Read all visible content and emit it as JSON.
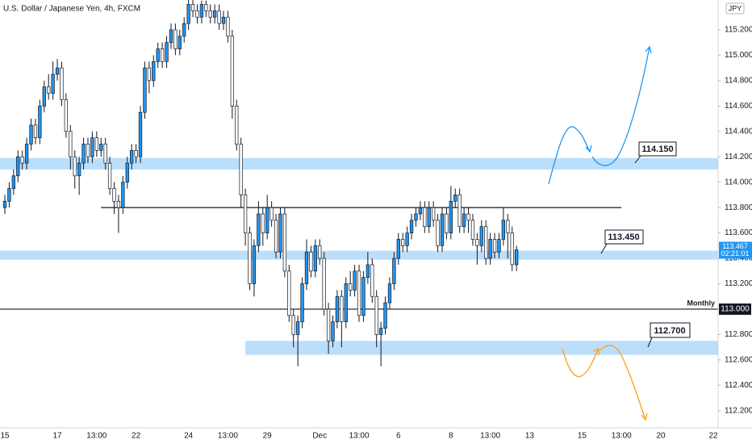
{
  "chart_data": {
    "type": "candlestick",
    "title": "U.S. Dollar / Japanese Yen, 4h, FXCM",
    "currency": "JPY",
    "up_color": "#2196f3",
    "down_color": "#ffffff",
    "border_color": "#131722",
    "grid": false,
    "ylim": [
      112.065,
      115.435
    ],
    "yticks": [
      {
        "value": 112.2,
        "label": "112.200"
      },
      {
        "value": 112.4,
        "label": "112.400"
      },
      {
        "value": 112.6,
        "label": "112.600"
      },
      {
        "value": 112.8,
        "label": "112.800"
      },
      {
        "value": 113.2,
        "label": "113.200"
      },
      {
        "value": 113.4,
        "label": "113.400"
      },
      {
        "value": 113.6,
        "label": "113.600"
      },
      {
        "value": 113.8,
        "label": "113.800"
      },
      {
        "value": 114,
        "label": "114.000"
      },
      {
        "value": 114.2,
        "label": "114.200"
      },
      {
        "value": 114.4,
        "label": "114.400"
      },
      {
        "value": 114.6,
        "label": "114.600"
      },
      {
        "value": 114.8,
        "label": "114.800"
      },
      {
        "value": 115,
        "label": "115.000"
      },
      {
        "value": 115.2,
        "label": "115.200"
      }
    ],
    "categories": [
      "15",
      null,
      null,
      null,
      null,
      null,
      null,
      null,
      null,
      null,
      null,
      null,
      "17",
      null,
      null,
      null,
      null,
      null,
      null,
      null,
      null,
      "13:00",
      null,
      null,
      null,
      null,
      null,
      null,
      null,
      null,
      "22",
      null,
      null,
      null,
      null,
      null,
      null,
      null,
      null,
      null,
      null,
      null,
      "24",
      null,
      null,
      null,
      null,
      null,
      null,
      null,
      null,
      "13:00",
      null,
      null,
      null,
      null,
      null,
      null,
      null,
      null,
      "29",
      null,
      null,
      null,
      null,
      null,
      null,
      null,
      null,
      null,
      null,
      null,
      "Dec",
      null,
      null,
      null,
      null,
      null,
      null,
      null,
      null,
      "13:00",
      null,
      null,
      null,
      null,
      null,
      null,
      null,
      null,
      "6",
      null,
      null,
      null,
      null,
      null,
      null,
      null,
      null,
      null,
      null,
      null,
      "8",
      null,
      null,
      null,
      null,
      null,
      null,
      null,
      null,
      "13:00",
      null,
      null,
      null,
      null,
      null,
      null,
      null,
      null,
      "13",
      null,
      null,
      null,
      null,
      null,
      null,
      null,
      null,
      null,
      null,
      null,
      "15",
      null,
      null,
      null,
      null,
      null,
      null,
      null,
      null,
      "13:00",
      null,
      null,
      null,
      null,
      null,
      null,
      null,
      null,
      "20",
      null,
      null,
      null,
      null,
      null,
      null,
      null,
      null,
      null,
      null,
      null,
      "22",
      null
    ],
    "open": [
      113.8,
      113.85,
      113.95,
      114.05,
      114.2,
      114.15,
      114.3,
      114.45,
      114.35,
      114.6,
      114.75,
      114.7,
      114.85,
      114.9,
      114.65,
      114.4,
      114.2,
      114.05,
      114.15,
      114.3,
      114.2,
      114.35,
      114.25,
      114.3,
      114.15,
      113.95,
      113.85,
      113.8,
      114.0,
      114.15,
      114.25,
      114.2,
      114.55,
      114.9,
      114.8,
      114.95,
      115.05,
      114.95,
      115.1,
      115.2,
      115.05,
      115.15,
      115.25,
      115.4,
      115.35,
      115.3,
      115.4,
      115.35,
      115.3,
      115.35,
      115.25,
      115.3,
      115.15,
      114.6,
      114.3,
      113.9,
      113.6,
      113.2,
      113.5,
      113.75,
      113.6,
      113.8,
      113.7,
      113.45,
      113.75,
      113.3,
      112.95,
      112.8,
      112.9,
      113.2,
      113.45,
      113.3,
      113.5,
      113.4,
      113.0,
      112.75,
      112.9,
      113.1,
      112.9,
      113.2,
      113.15,
      113.3,
      112.95,
      113.25,
      113.35,
      113.1,
      112.8,
      112.85,
      113.05,
      113.2,
      113.4,
      113.55,
      113.5,
      113.6,
      113.7,
      113.75,
      113.8,
      113.65,
      113.8,
      113.7,
      113.5,
      113.75,
      113.6,
      113.85,
      113.9,
      113.65,
      113.75,
      113.7,
      113.55,
      113.5,
      113.65,
      113.4,
      113.55,
      113.45,
      113.55,
      113.7,
      113.6,
      113.35,
      null,
      null,
      null,
      null,
      null,
      null,
      null,
      null,
      null,
      null,
      null,
      null,
      null,
      null,
      null,
      null,
      null,
      null,
      null,
      null,
      null,
      null,
      null,
      null,
      null,
      null,
      null,
      null,
      null,
      null,
      null,
      null,
      null,
      null,
      null,
      null,
      null,
      null,
      null,
      null,
      null,
      null,
      null,
      null,
      null,
      null
    ],
    "high": [
      113.9,
      114.0,
      114.1,
      114.25,
      114.25,
      114.35,
      114.5,
      114.5,
      114.65,
      114.8,
      114.85,
      114.95,
      114.97,
      114.95,
      114.7,
      114.45,
      114.25,
      114.2,
      114.35,
      114.35,
      114.4,
      114.4,
      114.35,
      114.35,
      114.2,
      114.0,
      113.9,
      114.05,
      114.2,
      114.3,
      114.3,
      114.6,
      114.95,
      114.95,
      115.0,
      115.1,
      115.1,
      115.15,
      115.25,
      115.25,
      115.2,
      115.3,
      115.45,
      115.45,
      115.4,
      115.43,
      115.43,
      115.4,
      115.4,
      115.4,
      115.35,
      115.35,
      115.2,
      114.65,
      114.35,
      113.95,
      113.65,
      113.55,
      113.85,
      113.8,
      113.9,
      113.85,
      113.75,
      113.8,
      113.8,
      113.35,
      113.0,
      112.95,
      113.25,
      113.55,
      113.5,
      113.55,
      113.55,
      113.45,
      113.05,
      112.95,
      113.15,
      113.15,
      113.25,
      113.3,
      113.35,
      113.35,
      113.3,
      113.45,
      113.4,
      113.15,
      112.9,
      113.1,
      113.25,
      113.45,
      113.6,
      113.6,
      113.65,
      113.75,
      113.8,
      113.85,
      113.85,
      113.85,
      113.85,
      113.75,
      113.8,
      113.8,
      113.97,
      113.95,
      113.95,
      113.8,
      113.8,
      113.75,
      113.6,
      113.7,
      113.7,
      113.6,
      113.6,
      113.6,
      113.8,
      113.75,
      113.65,
      113.5,
      null,
      null,
      null,
      null,
      null,
      null,
      null,
      null,
      null,
      null,
      null,
      null,
      null,
      null,
      null,
      null,
      null,
      null,
      null,
      null,
      null,
      null,
      null,
      null,
      null,
      null,
      null,
      null,
      null,
      null,
      null,
      null,
      null,
      null,
      null,
      null,
      null,
      null,
      null,
      null,
      null,
      null,
      null,
      null,
      null,
      null
    ],
    "low": [
      113.75,
      113.8,
      113.9,
      114.0,
      114.1,
      114.1,
      114.25,
      114.3,
      114.3,
      114.55,
      114.65,
      114.65,
      114.8,
      114.6,
      114.35,
      114.1,
      113.95,
      113.9,
      114.1,
      114.15,
      114.15,
      114.2,
      114.2,
      114.1,
      113.9,
      113.75,
      113.6,
      113.75,
      113.95,
      114.1,
      114.15,
      114.15,
      114.5,
      114.7,
      114.75,
      114.9,
      114.9,
      114.9,
      115.05,
      115.0,
      115.0,
      115.1,
      115.2,
      115.3,
      115.25,
      115.25,
      115.3,
      115.25,
      115.25,
      115.2,
      115.2,
      115.1,
      114.5,
      114.25,
      113.8,
      113.5,
      113.15,
      113.1,
      113.45,
      113.5,
      113.55,
      113.65,
      113.4,
      113.4,
      113.25,
      112.9,
      112.7,
      112.55,
      112.85,
      113.15,
      113.25,
      113.25,
      113.35,
      112.95,
      112.65,
      112.7,
      112.85,
      112.7,
      112.85,
      113.1,
      113.1,
      112.9,
      112.9,
      113.2,
      113.05,
      112.7,
      112.55,
      112.8,
      113.0,
      113.15,
      113.35,
      113.45,
      113.45,
      113.55,
      113.65,
      113.7,
      113.6,
      113.6,
      113.65,
      113.45,
      113.45,
      113.55,
      113.55,
      113.8,
      113.6,
      113.6,
      113.6,
      113.5,
      113.35,
      113.45,
      113.35,
      113.35,
      113.4,
      113.4,
      113.5,
      113.4,
      113.3,
      113.3,
      null,
      null,
      null,
      null,
      null,
      null,
      null,
      null,
      null,
      null,
      null,
      null,
      null,
      null,
      null,
      null,
      null,
      null,
      null,
      null,
      null,
      null,
      null,
      null,
      null,
      null,
      null,
      null,
      null,
      null,
      null,
      null,
      null,
      null,
      null,
      null,
      null,
      null,
      null,
      null,
      null,
      null,
      null,
      null,
      null,
      null
    ],
    "close": [
      113.85,
      113.95,
      114.05,
      114.2,
      114.15,
      114.3,
      114.45,
      114.35,
      114.6,
      114.75,
      114.7,
      114.85,
      114.9,
      114.65,
      114.4,
      114.2,
      114.05,
      114.15,
      114.3,
      114.2,
      114.35,
      114.25,
      114.3,
      114.15,
      113.95,
      113.85,
      113.8,
      114.0,
      114.15,
      114.25,
      114.2,
      114.55,
      114.9,
      114.8,
      114.95,
      115.05,
      114.95,
      115.1,
      115.2,
      115.05,
      115.15,
      115.25,
      115.4,
      115.35,
      115.3,
      115.4,
      115.35,
      115.3,
      115.35,
      115.25,
      115.3,
      115.15,
      114.6,
      114.3,
      113.9,
      113.6,
      113.2,
      113.5,
      113.75,
      113.6,
      113.8,
      113.7,
      113.45,
      113.75,
      113.3,
      112.95,
      112.8,
      112.9,
      113.2,
      113.45,
      113.3,
      113.5,
      113.4,
      113.0,
      112.75,
      112.9,
      113.1,
      112.9,
      113.2,
      113.15,
      113.3,
      112.95,
      113.25,
      113.35,
      113.1,
      112.8,
      112.85,
      113.05,
      113.2,
      113.4,
      113.55,
      113.5,
      113.6,
      113.7,
      113.75,
      113.8,
      113.65,
      113.8,
      113.7,
      113.5,
      113.75,
      113.6,
      113.85,
      113.9,
      113.65,
      113.75,
      113.7,
      113.55,
      113.5,
      113.65,
      113.4,
      113.55,
      113.45,
      113.55,
      113.7,
      113.6,
      113.35,
      113.467,
      null,
      null,
      null,
      null,
      null,
      null,
      null,
      null,
      null,
      null,
      null,
      null,
      null,
      null,
      null,
      null,
      null,
      null,
      null,
      null,
      null,
      null,
      null,
      null,
      null,
      null,
      null,
      null,
      null,
      null,
      null,
      null,
      null,
      null,
      null,
      null,
      null,
      null,
      null,
      null,
      null,
      null,
      null,
      null,
      null,
      null
    ],
    "zones": [
      {
        "label": "114.150",
        "value": 114.15,
        "low": 114.1,
        "high": 114.19,
        "color": "#bbdefb"
      },
      {
        "label": "113.450",
        "value": 113.45,
        "low": 113.39,
        "high": 113.46,
        "color": "#bbdefb"
      },
      {
        "label": "112.700",
        "value": 112.7,
        "low": 112.64,
        "high": 112.75,
        "x_start": 55,
        "color": "#bbdefb"
      }
    ],
    "lines": [
      {
        "value": 113.8,
        "x_start": 22,
        "x_end": 141
      },
      {
        "value": 113,
        "label": "Monthly",
        "price_label": "113.000"
      }
    ],
    "last_price": {
      "value": 113.467,
      "label": "113.467",
      "countdown": "02:21:01",
      "color": "#2196f3"
    }
  }
}
